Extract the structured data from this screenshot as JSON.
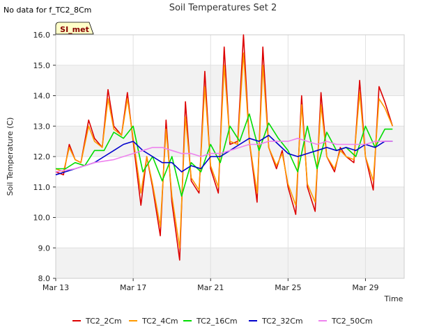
{
  "note": "No data for f_TC2_8Cm",
  "badge": {
    "label": "SI_met"
  },
  "chart_data": {
    "type": "line",
    "title": "Soil Temperatures Set 2",
    "xlabel": "Time",
    "ylabel": "Soil Temperature (C)",
    "ylim": [
      8.0,
      16.0
    ],
    "xlim": [
      0,
      18
    ],
    "yticks": [
      8.0,
      9.0,
      10.0,
      11.0,
      12.0,
      13.0,
      14.0,
      15.0,
      16.0
    ],
    "xticks": [
      {
        "value": 0,
        "label": "Mar 13"
      },
      {
        "value": 4,
        "label": "Mar 17"
      },
      {
        "value": 8,
        "label": "Mar 21"
      },
      {
        "value": 12,
        "label": "Mar 25"
      },
      {
        "value": 16,
        "label": "Mar 29"
      }
    ],
    "grid": true,
    "legend_position": "bottom",
    "series": [
      {
        "name": "TC2_2Cm",
        "color": "#dd0000",
        "x": [
          0.0,
          0.4,
          0.7,
          1.0,
          1.3,
          1.7,
          2.0,
          2.4,
          2.7,
          3.0,
          3.4,
          3.7,
          4.0,
          4.4,
          4.7,
          5.0,
          5.4,
          5.7,
          6.0,
          6.4,
          6.7,
          7.0,
          7.4,
          7.7,
          8.0,
          8.4,
          8.7,
          9.0,
          9.4,
          9.7,
          10.0,
          10.4,
          10.7,
          11.0,
          11.4,
          11.7,
          12.0,
          12.4,
          12.7,
          13.0,
          13.4,
          13.7,
          14.0,
          14.4,
          14.7,
          15.0,
          15.4,
          15.7,
          16.0,
          16.4,
          16.7,
          17.0,
          17.4
        ],
        "y": [
          11.5,
          11.4,
          12.4,
          11.9,
          11.8,
          13.2,
          12.6,
          12.3,
          14.2,
          13.0,
          12.7,
          14.1,
          12.5,
          10.4,
          12.0,
          11.0,
          9.4,
          13.2,
          10.5,
          8.6,
          13.8,
          11.2,
          10.8,
          14.8,
          11.6,
          10.8,
          15.6,
          12.4,
          12.5,
          16.0,
          12.5,
          10.5,
          15.6,
          12.3,
          11.6,
          12.2,
          11.0,
          10.1,
          14.0,
          11.0,
          10.2,
          14.1,
          12.0,
          11.5,
          12.3,
          12.0,
          11.8,
          14.5,
          12.0,
          10.9,
          14.3,
          13.8,
          13.0
        ]
      },
      {
        "name": "TC2_4Cm",
        "color": "#ff9900",
        "x": [
          0.0,
          0.4,
          0.7,
          1.0,
          1.3,
          1.7,
          2.0,
          2.4,
          2.7,
          3.0,
          3.4,
          3.7,
          4.0,
          4.4,
          4.7,
          5.0,
          5.4,
          5.7,
          6.0,
          6.4,
          6.7,
          7.0,
          7.4,
          7.7,
          8.0,
          8.4,
          8.7,
          9.0,
          9.4,
          9.7,
          10.0,
          10.4,
          10.7,
          11.0,
          11.4,
          11.7,
          12.0,
          12.4,
          12.7,
          13.0,
          13.4,
          13.7,
          14.0,
          14.4,
          14.7,
          15.0,
          15.4,
          15.7,
          16.0,
          16.4,
          16.7,
          17.0,
          17.4
        ],
        "y": [
          11.6,
          11.5,
          12.3,
          11.9,
          11.8,
          13.0,
          12.5,
          12.3,
          13.9,
          12.9,
          12.7,
          13.9,
          12.6,
          10.8,
          12.0,
          11.1,
          9.7,
          12.9,
          10.7,
          9.0,
          13.3,
          11.3,
          10.9,
          14.3,
          11.7,
          11.0,
          15.0,
          12.5,
          12.4,
          15.4,
          12.5,
          10.8,
          15.0,
          12.3,
          11.7,
          12.1,
          11.1,
          10.4,
          13.7,
          11.1,
          10.5,
          13.7,
          12.0,
          11.6,
          12.2,
          12.0,
          11.9,
          14.1,
          12.0,
          11.2,
          13.9,
          13.6,
          13.0
        ]
      },
      {
        "name": "TC2_16Cm",
        "color": "#00dd00",
        "x": [
          0.0,
          0.5,
          1.0,
          1.5,
          2.0,
          2.5,
          3.0,
          3.5,
          4.0,
          4.5,
          5.0,
          5.5,
          6.0,
          6.5,
          7.0,
          7.5,
          8.0,
          8.5,
          9.0,
          9.5,
          10.0,
          10.5,
          11.0,
          11.5,
          12.0,
          12.5,
          13.0,
          13.5,
          14.0,
          14.5,
          15.0,
          15.5,
          16.0,
          16.5,
          17.0,
          17.4
        ],
        "y": [
          11.6,
          11.6,
          11.8,
          11.7,
          12.2,
          12.2,
          12.8,
          12.6,
          13.0,
          11.5,
          12.0,
          11.2,
          12.0,
          10.7,
          11.8,
          11.5,
          12.4,
          11.8,
          13.0,
          12.5,
          13.4,
          12.2,
          13.1,
          12.6,
          12.2,
          11.5,
          13.0,
          11.6,
          12.8,
          12.2,
          12.3,
          12.0,
          13.0,
          12.3,
          12.9,
          12.9
        ]
      },
      {
        "name": "TC2_32Cm",
        "color": "#0000cc",
        "x": [
          0.0,
          0.5,
          1.0,
          1.5,
          2.0,
          2.5,
          3.0,
          3.5,
          4.0,
          4.5,
          5.0,
          5.5,
          6.0,
          6.5,
          7.0,
          7.5,
          8.0,
          8.5,
          9.0,
          9.5,
          10.0,
          10.5,
          11.0,
          11.5,
          12.0,
          12.5,
          13.0,
          13.5,
          14.0,
          14.5,
          15.0,
          15.5,
          16.0,
          16.5,
          17.0,
          17.4
        ],
        "y": [
          11.4,
          11.5,
          11.6,
          11.7,
          11.8,
          12.0,
          12.2,
          12.4,
          12.5,
          12.2,
          12.0,
          11.8,
          11.8,
          11.5,
          11.7,
          11.6,
          12.0,
          12.0,
          12.2,
          12.4,
          12.6,
          12.5,
          12.7,
          12.4,
          12.1,
          12.0,
          12.1,
          12.2,
          12.3,
          12.2,
          12.3,
          12.2,
          12.4,
          12.3,
          12.5,
          12.5
        ]
      },
      {
        "name": "TC2_50Cm",
        "color": "#ee82ee",
        "x": [
          0.0,
          1.0,
          2.0,
          3.0,
          4.0,
          4.5,
          5.0,
          5.5,
          6.0,
          6.5,
          7.0,
          7.5,
          8.0,
          8.5,
          9.0,
          9.5,
          10.0,
          10.5,
          11.0,
          11.5,
          12.0,
          12.5,
          13.0,
          13.5,
          14.0,
          14.5,
          15.0,
          15.5,
          16.0,
          16.5,
          17.0,
          17.4
        ],
        "y": [
          11.5,
          11.6,
          11.8,
          11.9,
          12.1,
          12.2,
          12.3,
          12.3,
          12.2,
          12.1,
          12.1,
          12.0,
          12.1,
          12.1,
          12.2,
          12.3,
          12.4,
          12.4,
          12.5,
          12.5,
          12.5,
          12.6,
          12.5,
          12.4,
          12.5,
          12.4,
          12.4,
          12.4,
          12.4,
          12.5,
          12.5,
          12.5
        ]
      }
    ]
  }
}
